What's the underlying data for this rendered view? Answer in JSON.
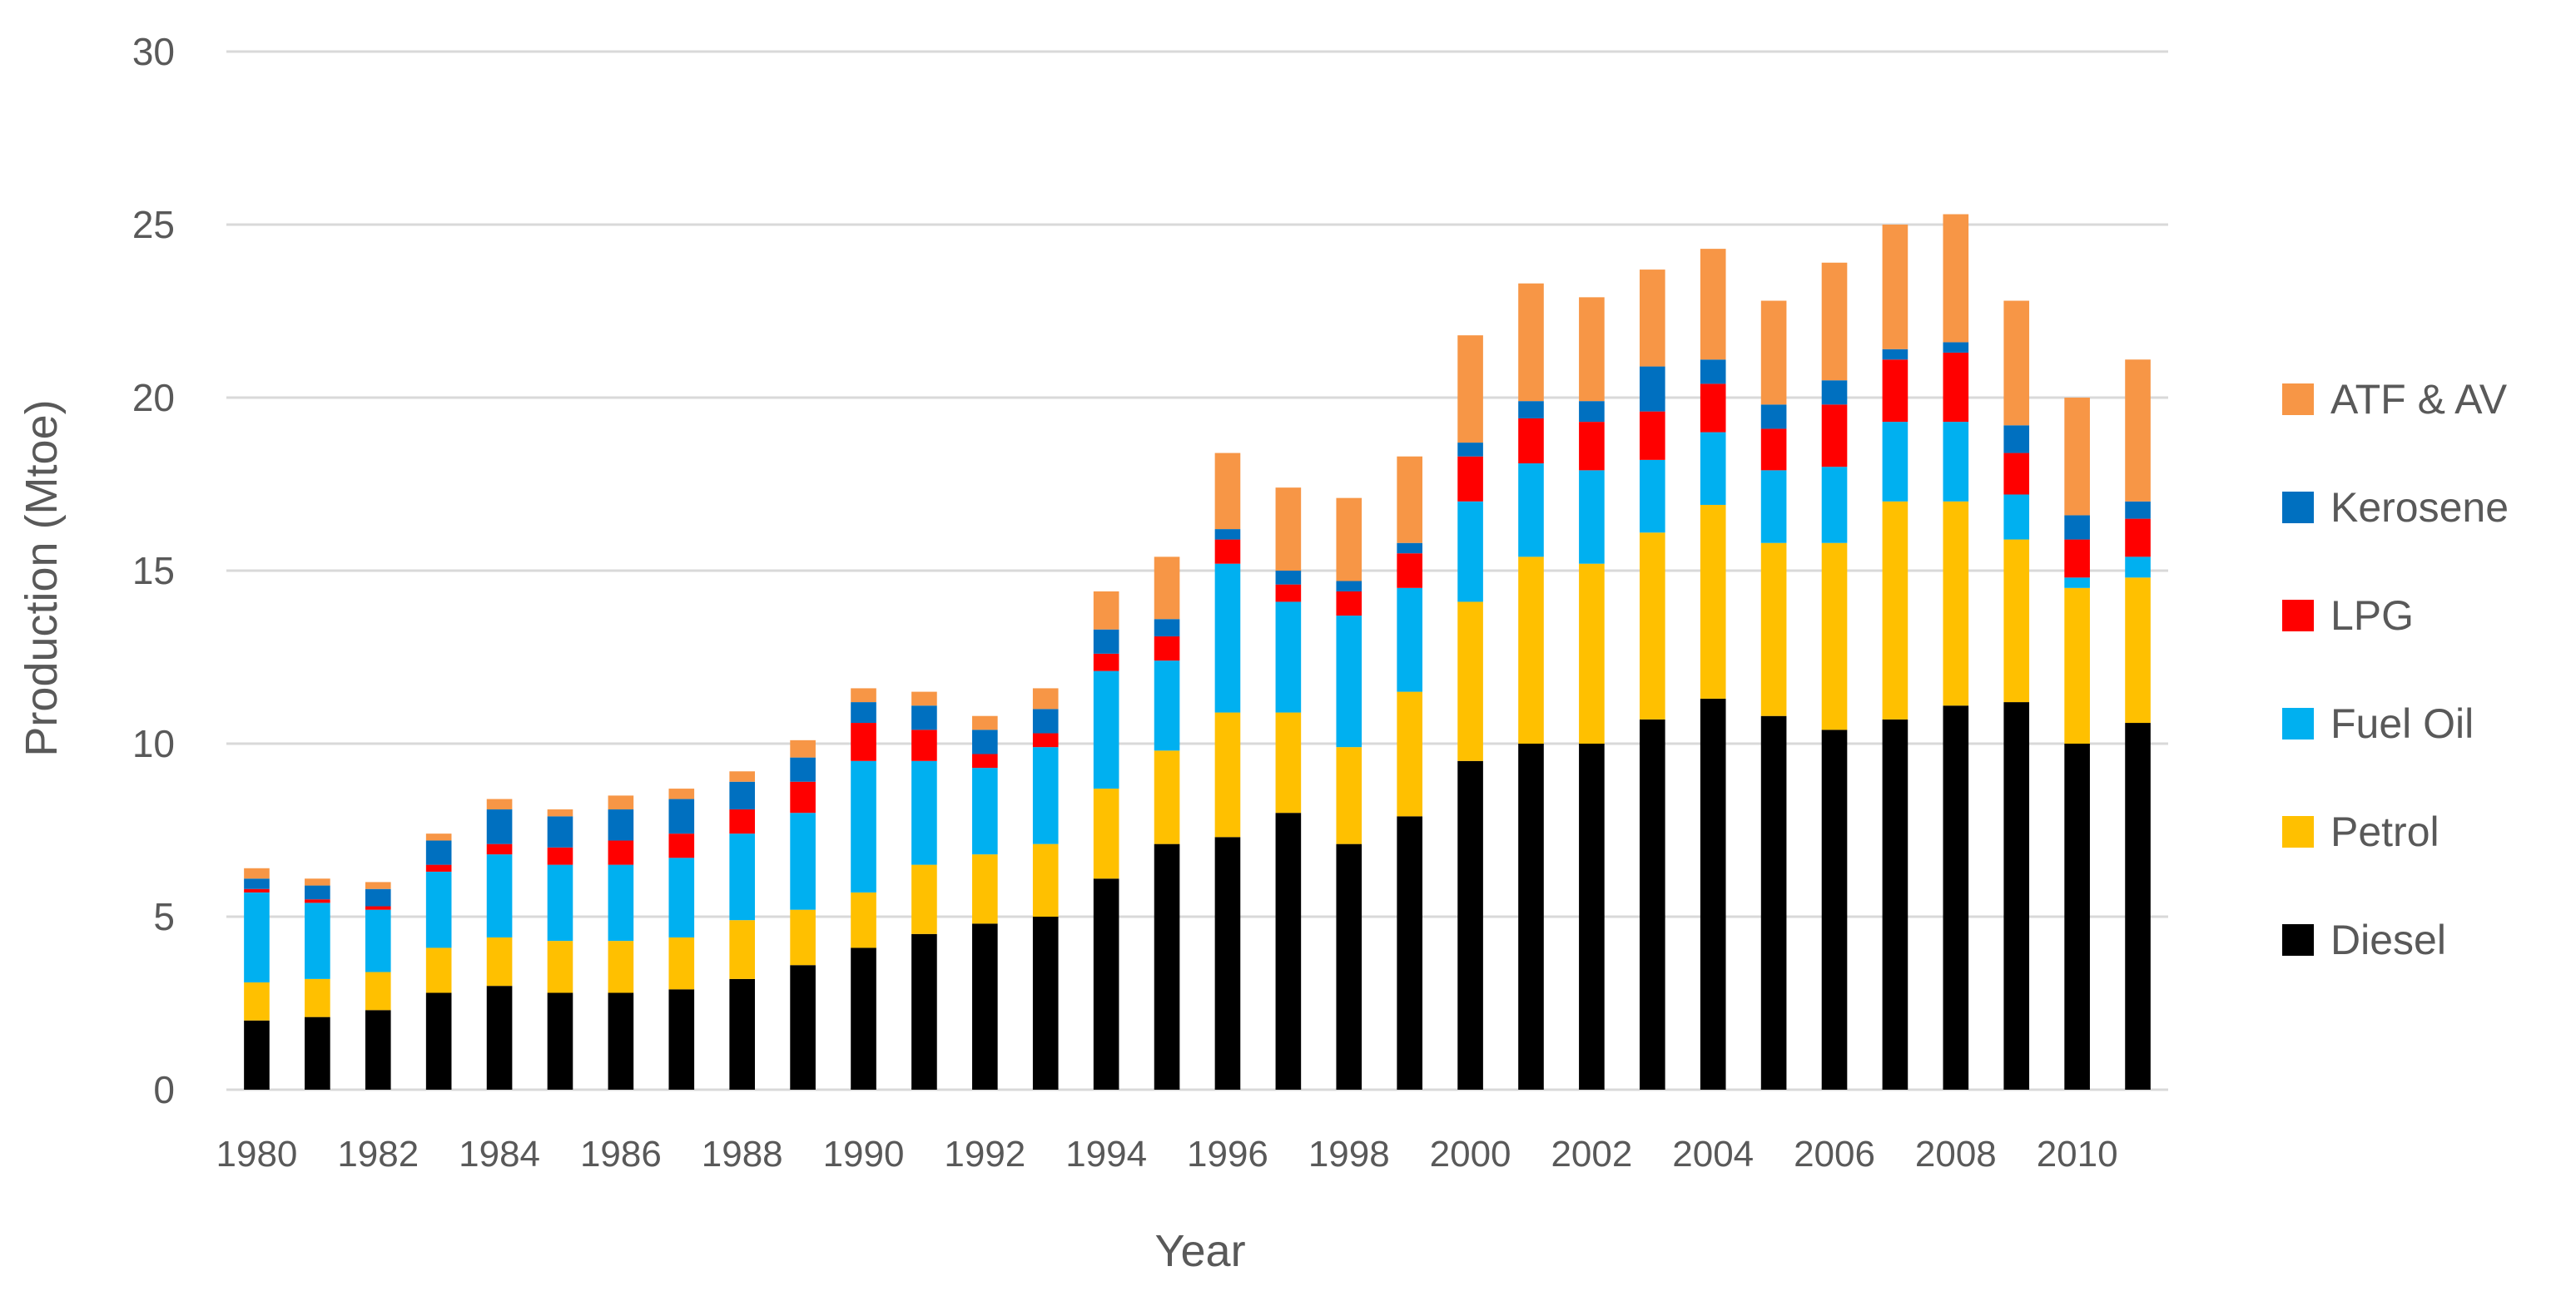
{
  "chart_data": {
    "type": "bar",
    "stacked": true,
    "title": "",
    "xlabel": "Year",
    "ylabel": "Production (Mtoe)",
    "ylim": [
      0,
      30
    ],
    "yticks": [
      0,
      5,
      10,
      15,
      20,
      25,
      30
    ],
    "grid": true,
    "legend_position": "right",
    "categories": [
      "1980",
      "1981",
      "1982",
      "1983",
      "1984",
      "1985",
      "1986",
      "1987",
      "1988",
      "1989",
      "1990",
      "1991",
      "1992",
      "1993",
      "1994",
      "1995",
      "1996",
      "1997",
      "1998",
      "1999",
      "2000",
      "2001",
      "2002",
      "2003",
      "2004",
      "2005",
      "2006",
      "2007",
      "2008",
      "2009",
      "2010",
      "2011"
    ],
    "x_tick_labels": [
      "1980",
      "",
      "1982",
      "",
      "1984",
      "",
      "1986",
      "",
      "1988",
      "",
      "1990",
      "",
      "1992",
      "",
      "1994",
      "",
      "1996",
      "",
      "1998",
      "",
      "2000",
      "",
      "2002",
      "",
      "2004",
      "",
      "2006",
      "",
      "2008",
      "",
      "2010",
      ""
    ],
    "series": [
      {
        "name": "Diesel",
        "color": "#000000",
        "values": [
          2.0,
          2.1,
          2.3,
          2.8,
          3.0,
          2.8,
          2.8,
          2.9,
          3.2,
          3.6,
          4.1,
          4.5,
          4.8,
          5.0,
          6.1,
          7.1,
          7.3,
          8.0,
          7.1,
          7.9,
          9.5,
          10.0,
          10.0,
          10.7,
          11.3,
          10.8,
          10.4,
          10.7,
          11.1,
          11.2,
          10.0,
          10.6
        ]
      },
      {
        "name": "Petrol",
        "color": "#FFC000",
        "values": [
          1.1,
          1.1,
          1.1,
          1.3,
          1.4,
          1.5,
          1.5,
          1.5,
          1.7,
          1.6,
          1.6,
          2.0,
          2.0,
          2.1,
          2.6,
          2.7,
          3.6,
          2.9,
          2.8,
          3.6,
          4.6,
          5.4,
          5.2,
          5.4,
          5.6,
          5.0,
          5.4,
          6.3,
          5.9,
          4.7,
          4.5,
          4.2
        ]
      },
      {
        "name": "Fuel Oil",
        "color": "#00B0F0",
        "values": [
          2.6,
          2.2,
          1.8,
          2.2,
          2.4,
          2.2,
          2.2,
          2.3,
          2.5,
          2.8,
          3.8,
          3.0,
          2.5,
          2.8,
          3.4,
          2.6,
          4.3,
          3.2,
          3.8,
          3.0,
          2.9,
          2.7,
          2.7,
          2.1,
          2.1,
          2.1,
          2.2,
          2.3,
          2.3,
          1.3,
          0.3,
          0.6
        ]
      },
      {
        "name": "LPG",
        "color": "#FF0000",
        "values": [
          0.1,
          0.1,
          0.1,
          0.2,
          0.3,
          0.5,
          0.7,
          0.7,
          0.7,
          0.9,
          1.1,
          0.9,
          0.4,
          0.4,
          0.5,
          0.7,
          0.7,
          0.5,
          0.7,
          1.0,
          1.3,
          1.3,
          1.4,
          1.4,
          1.4,
          1.2,
          1.8,
          1.8,
          2.0,
          1.2,
          1.1,
          1.1
        ]
      },
      {
        "name": "Kerosene",
        "color": "#0070C0",
        "values": [
          0.3,
          0.4,
          0.5,
          0.7,
          1.0,
          0.9,
          0.9,
          1.0,
          0.8,
          0.7,
          0.6,
          0.7,
          0.7,
          0.7,
          0.7,
          0.5,
          0.3,
          0.4,
          0.3,
          0.3,
          0.4,
          0.5,
          0.6,
          1.3,
          0.7,
          0.7,
          0.7,
          0.3,
          0.3,
          0.8,
          0.7,
          0.5
        ]
      },
      {
        "name": "ATF & AV",
        "color": "#F79646",
        "values": [
          0.3,
          0.2,
          0.2,
          0.2,
          0.3,
          0.2,
          0.4,
          0.3,
          0.3,
          0.5,
          0.4,
          0.4,
          0.4,
          0.6,
          1.1,
          1.8,
          2.2,
          2.4,
          2.4,
          2.5,
          3.1,
          3.4,
          3.0,
          2.8,
          3.2,
          3.0,
          3.4,
          3.6,
          3.7,
          3.6,
          3.4,
          4.1
        ]
      }
    ],
    "legend_order": [
      "ATF & AV",
      "Kerosene",
      "LPG",
      "Fuel Oil",
      "Petrol",
      "Diesel"
    ]
  }
}
